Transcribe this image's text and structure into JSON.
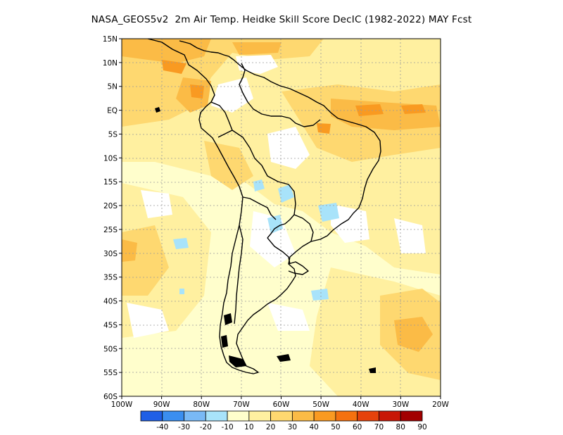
{
  "title": "NASA_GEOS5v2  2m Air Temp. Heidke Skill Score DecIC (1982-2022) MAY Fcst",
  "lat_labels": [
    "15N",
    "10N",
    "5N",
    "EQ",
    "5S",
    "10S",
    "15S",
    "20S",
    "25S",
    "30S",
    "35S",
    "40S",
    "45S",
    "50S",
    "55S",
    "60S"
  ],
  "lon_labels": [
    "100W",
    "90W",
    "80W",
    "70W",
    "60W",
    "50W",
    "40W",
    "30W",
    "20W"
  ],
  "colorbar": {
    "labels": [
      "-40",
      "-30",
      "-20",
      "-10",
      "10",
      "20",
      "30",
      "40",
      "50",
      "60",
      "70",
      "80",
      "90"
    ],
    "colors": [
      "#1f5fe6",
      "#3a8ef0",
      "#79b9f6",
      "#a8e3fa",
      "#fffecc",
      "#fff0a0",
      "#fed870",
      "#fbbb46",
      "#f99a21",
      "#f4710f",
      "#e5420b",
      "#c81706",
      "#a20000"
    ]
  }
}
